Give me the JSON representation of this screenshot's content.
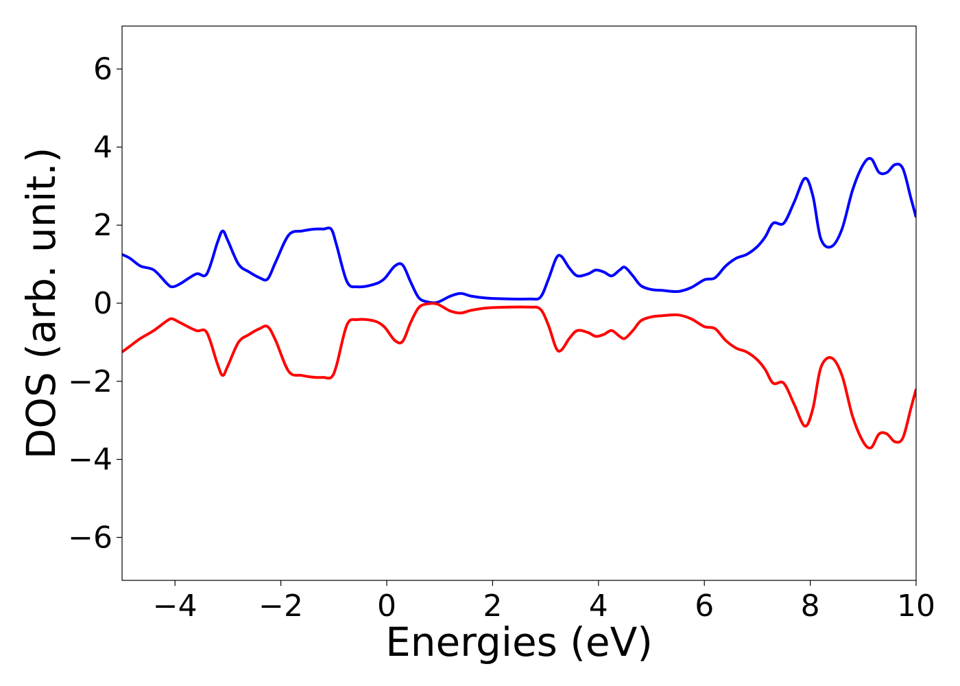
{
  "chart_data": {
    "type": "line",
    "title": "",
    "xlabel": "Energies (eV)",
    "ylabel": "DOS (arb. unit.)",
    "xlim": [
      -5,
      10
    ],
    "ylim": [
      -7.1,
      7.1
    ],
    "x_ticks": [
      -4,
      -2,
      0,
      2,
      4,
      6,
      8,
      10
    ],
    "x_tick_labels": [
      "−4",
      "−2",
      "0",
      "2",
      "4",
      "6",
      "8",
      "10"
    ],
    "y_ticks": [
      -6,
      -4,
      -2,
      0,
      2,
      4,
      6
    ],
    "y_tick_labels": [
      "−6",
      "−4",
      "−2",
      "0",
      "2",
      "4",
      "6"
    ],
    "grid": false,
    "legend": "none",
    "series": [
      {
        "color": "#0000ff",
        "x": [
          -5.0,
          -4.85,
          -4.65,
          -4.4,
          -4.15,
          -4.05,
          -3.9,
          -3.6,
          -3.4,
          -3.2,
          -3.1,
          -3.0,
          -2.8,
          -2.6,
          -2.4,
          -2.25,
          -2.1,
          -1.85,
          -1.6,
          -1.35,
          -1.2,
          -1.05,
          -0.95,
          -0.75,
          -0.55,
          -0.25,
          -0.05,
          0.15,
          0.3,
          0.45,
          0.6,
          0.75,
          0.95,
          1.2,
          1.4,
          1.6,
          1.9,
          2.3,
          2.7,
          2.9,
          3.05,
          3.2,
          3.3,
          3.45,
          3.6,
          3.8,
          3.95,
          4.1,
          4.25,
          4.4,
          4.5,
          4.65,
          4.8,
          5.0,
          5.2,
          5.5,
          5.75,
          6.0,
          6.2,
          6.4,
          6.6,
          6.8,
          7.0,
          7.15,
          7.3,
          7.5,
          7.7,
          7.9,
          8.05,
          8.2,
          8.4,
          8.6,
          8.8,
          9.0,
          9.15,
          9.3,
          9.45,
          9.6,
          9.75,
          9.9,
          10.0
        ],
        "values": [
          1.25,
          1.15,
          0.95,
          0.85,
          0.5,
          0.42,
          0.5,
          0.75,
          0.75,
          1.55,
          1.85,
          1.6,
          1.0,
          0.8,
          0.65,
          0.62,
          1.05,
          1.75,
          1.85,
          1.9,
          1.9,
          1.9,
          1.5,
          0.55,
          0.42,
          0.48,
          0.62,
          0.95,
          0.98,
          0.55,
          0.15,
          0.04,
          0.02,
          0.18,
          0.25,
          0.18,
          0.13,
          0.11,
          0.11,
          0.15,
          0.6,
          1.15,
          1.2,
          0.9,
          0.7,
          0.75,
          0.85,
          0.8,
          0.7,
          0.85,
          0.92,
          0.7,
          0.45,
          0.35,
          0.33,
          0.3,
          0.4,
          0.6,
          0.65,
          0.95,
          1.15,
          1.25,
          1.45,
          1.7,
          2.05,
          2.05,
          2.6,
          3.2,
          2.75,
          1.65,
          1.45,
          1.9,
          2.9,
          3.55,
          3.7,
          3.35,
          3.35,
          3.55,
          3.45,
          2.7,
          2.2
        ]
      },
      {
        "color": "#ff0000",
        "x": [
          -5.0,
          -4.85,
          -4.65,
          -4.4,
          -4.15,
          -4.05,
          -3.9,
          -3.6,
          -3.4,
          -3.2,
          -3.1,
          -3.0,
          -2.8,
          -2.6,
          -2.4,
          -2.25,
          -2.1,
          -1.85,
          -1.6,
          -1.35,
          -1.2,
          -1.05,
          -0.95,
          -0.75,
          -0.55,
          -0.25,
          -0.05,
          0.15,
          0.3,
          0.45,
          0.6,
          0.75,
          0.95,
          1.2,
          1.4,
          1.6,
          1.9,
          2.3,
          2.7,
          2.9,
          3.05,
          3.2,
          3.3,
          3.45,
          3.6,
          3.8,
          3.95,
          4.1,
          4.25,
          4.4,
          4.5,
          4.65,
          4.8,
          5.0,
          5.2,
          5.5,
          5.75,
          6.0,
          6.2,
          6.4,
          6.6,
          6.8,
          7.0,
          7.15,
          7.3,
          7.5,
          7.7,
          7.9,
          8.05,
          8.2,
          8.4,
          8.6,
          8.8,
          9.0,
          9.15,
          9.3,
          9.45,
          9.6,
          9.75,
          9.9,
          10.0
        ],
        "values": [
          -1.25,
          -1.1,
          -0.9,
          -0.7,
          -0.45,
          -0.4,
          -0.5,
          -0.7,
          -0.75,
          -1.55,
          -1.85,
          -1.6,
          -1.0,
          -0.8,
          -0.65,
          -0.6,
          -0.95,
          -1.75,
          -1.85,
          -1.9,
          -1.9,
          -1.9,
          -1.6,
          -0.55,
          -0.42,
          -0.45,
          -0.6,
          -0.95,
          -0.98,
          -0.5,
          -0.12,
          -0.02,
          -0.02,
          -0.2,
          -0.25,
          -0.18,
          -0.12,
          -0.1,
          -0.1,
          -0.15,
          -0.55,
          -1.15,
          -1.2,
          -0.9,
          -0.7,
          -0.75,
          -0.85,
          -0.8,
          -0.7,
          -0.85,
          -0.9,
          -0.7,
          -0.45,
          -0.35,
          -0.32,
          -0.3,
          -0.4,
          -0.6,
          -0.65,
          -0.95,
          -1.15,
          -1.25,
          -1.45,
          -1.7,
          -2.05,
          -2.05,
          -2.6,
          -3.15,
          -2.7,
          -1.65,
          -1.4,
          -1.85,
          -2.9,
          -3.55,
          -3.7,
          -3.35,
          -3.35,
          -3.55,
          -3.45,
          -2.7,
          -2.2
        ]
      }
    ]
  }
}
